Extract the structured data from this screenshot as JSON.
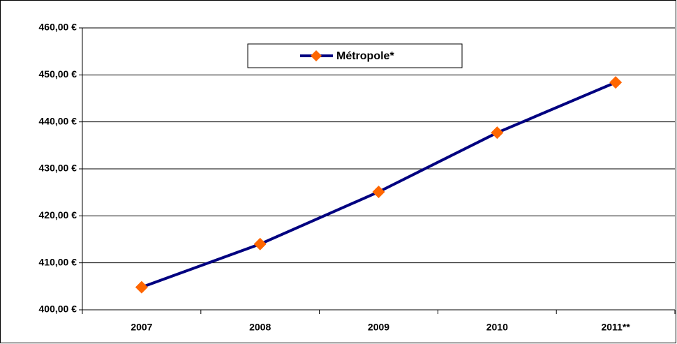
{
  "chart_data": {
    "type": "line",
    "categories": [
      "2007",
      "2008",
      "2009",
      "2010",
      "2011**"
    ],
    "series": [
      {
        "name": "Métropole*",
        "color": "#000080",
        "marker_color": "#ff6600",
        "values": [
          404.8,
          414.0,
          425.1,
          437.7,
          448.4
        ]
      }
    ],
    "ylim": [
      400,
      460
    ],
    "yticks": [
      {
        "value": 400,
        "label": "400,00 €"
      },
      {
        "value": 410,
        "label": "410,00 €"
      },
      {
        "value": 420,
        "label": "420,00 €"
      },
      {
        "value": 430,
        "label": "430,00 €"
      },
      {
        "value": 440,
        "label": "440,00 €"
      },
      {
        "value": 450,
        "label": "450,00 €"
      },
      {
        "value": 460,
        "label": "460,00 €"
      }
    ],
    "grid": true,
    "legend": "top"
  }
}
